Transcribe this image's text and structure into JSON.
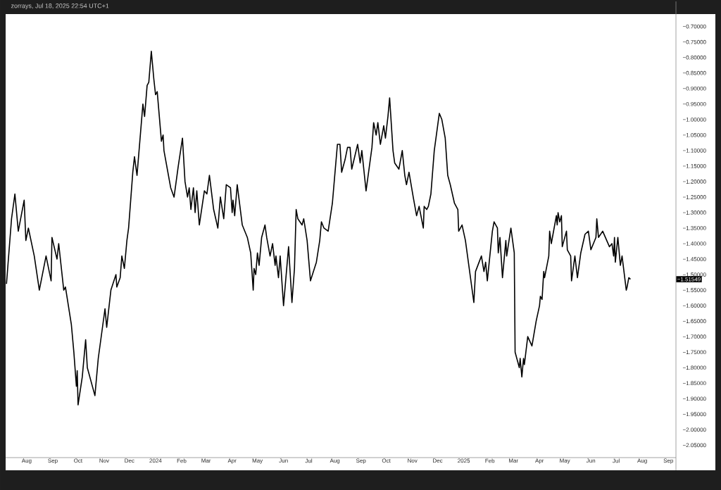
{
  "chart_data": {
    "type": "line",
    "color": "#000000",
    "line_style": "solid",
    "annotations": [
      "zorrays, Jul 18, 2025 22:54 UTC+1",
      "−1.51549"
    ],
    "xlim": [
      "2023-07-07",
      "2025-09-10"
    ],
    "ylim": [
      -2.09,
      -0.66
    ],
    "xticks": [
      {
        "value": "2023-08-01",
        "label": "Aug"
      },
      {
        "value": "2023-09-01",
        "label": "Sep"
      },
      {
        "value": "2023-10-01",
        "label": "Oct"
      },
      {
        "value": "2023-11-01",
        "label": "Nov"
      },
      {
        "value": "2023-12-01",
        "label": "Dec"
      },
      {
        "value": "2024-01-01",
        "label": "2024"
      },
      {
        "value": "2024-02-01",
        "label": "Feb"
      },
      {
        "value": "2024-03-01",
        "label": "Mar"
      },
      {
        "value": "2024-04-01",
        "label": "Apr"
      },
      {
        "value": "2024-05-01",
        "label": "May"
      },
      {
        "value": "2024-06-01",
        "label": "Jun"
      },
      {
        "value": "2024-07-01",
        "label": "Jul"
      },
      {
        "value": "2024-08-01",
        "label": "Aug"
      },
      {
        "value": "2024-09-01",
        "label": "Sep"
      },
      {
        "value": "2024-10-01",
        "label": "Oct"
      },
      {
        "value": "2024-11-01",
        "label": "Nov"
      },
      {
        "value": "2024-12-01",
        "label": "Dec"
      },
      {
        "value": "2025-01-01",
        "label": "2025"
      },
      {
        "value": "2025-02-01",
        "label": "Feb"
      },
      {
        "value": "2025-03-01",
        "label": "Mar"
      },
      {
        "value": "2025-04-01",
        "label": "Apr"
      },
      {
        "value": "2025-05-01",
        "label": "May"
      },
      {
        "value": "2025-06-01",
        "label": "Jun"
      },
      {
        "value": "2025-07-01",
        "label": "Jul"
      },
      {
        "value": "2025-08-01",
        "label": "Aug"
      },
      {
        "value": "2025-09-01",
        "label": "Sep"
      }
    ],
    "yticks": [
      {
        "value": -0.7,
        "label": "−0.70000"
      },
      {
        "value": -0.75,
        "label": "−0.75000"
      },
      {
        "value": -0.8,
        "label": "−0.80000"
      },
      {
        "value": -0.85,
        "label": "−0.85000"
      },
      {
        "value": -0.9,
        "label": "−0.90000"
      },
      {
        "value": -0.95,
        "label": "−0.95000"
      },
      {
        "value": -1.0,
        "label": "−1.00000"
      },
      {
        "value": -1.05,
        "label": "−1.05000"
      },
      {
        "value": -1.1,
        "label": "−1.10000"
      },
      {
        "value": -1.15,
        "label": "−1.15000"
      },
      {
        "value": -1.2,
        "label": "−1.20000"
      },
      {
        "value": -1.25,
        "label": "−1.25000"
      },
      {
        "value": -1.3,
        "label": "−1.30000"
      },
      {
        "value": -1.35,
        "label": "−1.35000"
      },
      {
        "value": -1.4,
        "label": "−1.40000"
      },
      {
        "value": -1.45,
        "label": "−1.45000"
      },
      {
        "value": -1.5,
        "label": "−1.50000"
      },
      {
        "value": -1.55,
        "label": "−1.55000"
      },
      {
        "value": -1.6,
        "label": "−1.60000"
      },
      {
        "value": -1.65,
        "label": "−1.65000"
      },
      {
        "value": -1.7,
        "label": "−1.70000"
      },
      {
        "value": -1.75,
        "label": "−1.75000"
      },
      {
        "value": -1.8,
        "label": "−1.80000"
      },
      {
        "value": -1.85,
        "label": "−1.85000"
      },
      {
        "value": -1.9,
        "label": "−1.90000"
      },
      {
        "value": -1.95,
        "label": "−1.95000"
      },
      {
        "value": -2.0,
        "label": "−2.00000"
      },
      {
        "value": -2.05,
        "label": "−2.05000"
      }
    ],
    "x": [
      "2023-07-08",
      "2023-07-14",
      "2023-07-18",
      "2023-07-22",
      "2023-07-29",
      "2023-07-31",
      "2023-08-03",
      "2023-08-10",
      "2023-08-16",
      "2023-08-24",
      "2023-08-30",
      "2023-08-31",
      "2023-09-06",
      "2023-09-08",
      "2023-09-14",
      "2023-09-16",
      "2023-09-23",
      "2023-09-26",
      "2023-09-29",
      "2023-09-30",
      "2023-10-01",
      "2023-10-06",
      "2023-10-10",
      "2023-10-12",
      "2023-10-21",
      "2023-10-25",
      "2023-11-02",
      "2023-11-04",
      "2023-11-09",
      "2023-11-15",
      "2023-11-16",
      "2023-11-20",
      "2023-11-22",
      "2023-11-25",
      "2023-11-28",
      "2023-11-30",
      "2023-12-05",
      "2023-12-07",
      "2023-12-10",
      "2023-12-17",
      "2023-12-19",
      "2023-12-22",
      "2023-12-24",
      "2023-12-27",
      "2023-12-30",
      "2024-01-01",
      "2024-01-03",
      "2024-01-08",
      "2024-01-10",
      "2024-01-11",
      "2024-01-19",
      "2024-01-23",
      "2024-01-28",
      "2024-02-02",
      "2024-02-05",
      "2024-02-08",
      "2024-02-10",
      "2024-02-12",
      "2024-02-15",
      "2024-02-17",
      "2024-02-19",
      "2024-02-22",
      "2024-02-28",
      "2024-03-02",
      "2024-03-05",
      "2024-03-10",
      "2024-03-15",
      "2024-03-18",
      "2024-03-22",
      "2024-03-25",
      "2024-03-30",
      "2024-04-01",
      "2024-04-02",
      "2024-04-04",
      "2024-04-07",
      "2024-04-13",
      "2024-04-19",
      "2024-04-23",
      "2024-04-26",
      "2024-04-27",
      "2024-04-29",
      "2024-05-01",
      "2024-05-03",
      "2024-05-06",
      "2024-05-10",
      "2024-05-12",
      "2024-05-16",
      "2024-05-19",
      "2024-05-22",
      "2024-05-23",
      "2024-05-26",
      "2024-05-28",
      "2024-06-01",
      "2024-06-07",
      "2024-06-11",
      "2024-06-14",
      "2024-06-16",
      "2024-06-18",
      "2024-06-23",
      "2024-06-25",
      "2024-06-29",
      "2024-07-03",
      "2024-07-10",
      "2024-07-14",
      "2024-07-16",
      "2024-07-19",
      "2024-07-24",
      "2024-07-29",
      "2024-08-04",
      "2024-08-07",
      "2024-08-09",
      "2024-08-13",
      "2024-08-16",
      "2024-08-19",
      "2024-08-21",
      "2024-08-28",
      "2024-08-31",
      "2024-09-02",
      "2024-09-07",
      "2024-09-14",
      "2024-09-16",
      "2024-09-19",
      "2024-09-21",
      "2024-09-24",
      "2024-09-28",
      "2024-09-30",
      "2024-10-03",
      "2024-10-05",
      "2024-10-09",
      "2024-10-11",
      "2024-10-16",
      "2024-10-20",
      "2024-10-23",
      "2024-10-25",
      "2024-10-28",
      "2024-11-02",
      "2024-11-06",
      "2024-11-09",
      "2024-11-14",
      "2024-11-15",
      "2024-11-18",
      "2024-11-20",
      "2024-11-23",
      "2024-11-27",
      "2024-12-01",
      "2024-12-03",
      "2024-12-06",
      "2024-12-10",
      "2024-12-13",
      "2024-12-16",
      "2024-12-21",
      "2024-12-25",
      "2024-12-26",
      "2024-12-30",
      "2025-01-03",
      "2025-01-09",
      "2025-01-13",
      "2025-01-15",
      "2025-01-22",
      "2025-01-25",
      "2025-01-27",
      "2025-01-29",
      "2025-02-04",
      "2025-02-06",
      "2025-02-10",
      "2025-02-11",
      "2025-02-13",
      "2025-02-16",
      "2025-02-20",
      "2025-02-21",
      "2025-02-26",
      "2025-03-02",
      "2025-03-03",
      "2025-03-08",
      "2025-03-09",
      "2025-03-11",
      "2025-03-13",
      "2025-03-14",
      "2025-03-18",
      "2025-03-23",
      "2025-03-28",
      "2025-04-01",
      "2025-04-02",
      "2025-04-04",
      "2025-04-06",
      "2025-04-07",
      "2025-04-12",
      "2025-04-13",
      "2025-04-15",
      "2025-04-21",
      "2025-04-22",
      "2025-04-23",
      "2025-04-25",
      "2025-04-27",
      "2025-04-28",
      "2025-05-03",
      "2025-05-04",
      "2025-05-08",
      "2025-05-09",
      "2025-05-13",
      "2025-05-16",
      "2025-05-20",
      "2025-05-25",
      "2025-05-29",
      "2025-06-01",
      "2025-06-07",
      "2025-06-08",
      "2025-06-10",
      "2025-06-15",
      "2025-06-23",
      "2025-06-26",
      "2025-06-28",
      "2025-06-29",
      "2025-06-30",
      "2025-07-03",
      "2025-07-06",
      "2025-07-08",
      "2025-07-13",
      "2025-07-14",
      "2025-07-16",
      "2025-07-18"
    ],
    "values": [
      -1.53,
      -1.32,
      -1.24,
      -1.36,
      -1.26,
      -1.39,
      -1.35,
      -1.44,
      -1.55,
      -1.44,
      -1.52,
      -1.38,
      -1.45,
      -1.4,
      -1.55,
      -1.54,
      -1.66,
      -1.75,
      -1.86,
      -1.81,
      -1.92,
      -1.83,
      -1.71,
      -1.8,
      -1.89,
      -1.77,
      -1.61,
      -1.67,
      -1.55,
      -1.5,
      -1.54,
      -1.51,
      -1.44,
      -1.48,
      -1.39,
      -1.35,
      -1.17,
      -1.12,
      -1.18,
      -0.95,
      -0.99,
      -0.89,
      -0.88,
      -0.78,
      -0.87,
      -0.92,
      -0.91,
      -1.07,
      -1.05,
      -1.1,
      -1.22,
      -1.25,
      -1.15,
      -1.06,
      -1.2,
      -1.25,
      -1.22,
      -1.29,
      -1.22,
      -1.3,
      -1.23,
      -1.34,
      -1.23,
      -1.24,
      -1.18,
      -1.29,
      -1.35,
      -1.25,
      -1.32,
      -1.21,
      -1.22,
      -1.3,
      -1.26,
      -1.31,
      -1.21,
      -1.34,
      -1.38,
      -1.43,
      -1.55,
      -1.48,
      -1.5,
      -1.43,
      -1.47,
      -1.38,
      -1.34,
      -1.38,
      -1.44,
      -1.4,
      -1.47,
      -1.44,
      -1.51,
      -1.44,
      -1.6,
      -1.41,
      -1.59,
      -1.48,
      -1.29,
      -1.32,
      -1.34,
      -1.32,
      -1.39,
      -1.52,
      -1.46,
      -1.39,
      -1.33,
      -1.35,
      -1.36,
      -1.27,
      -1.08,
      -1.08,
      -1.17,
      -1.13,
      -1.09,
      -1.09,
      -1.16,
      -1.08,
      -1.14,
      -1.1,
      -1.23,
      -1.09,
      -1.01,
      -1.05,
      -1.01,
      -1.08,
      -1.02,
      -1.06,
      -0.99,
      -0.93,
      -1.1,
      -1.14,
      -1.16,
      -1.1,
      -1.18,
      -1.21,
      -1.17,
      -1.25,
      -1.31,
      -1.28,
      -1.35,
      -1.28,
      -1.29,
      -1.28,
      -1.24,
      -1.1,
      -1.02,
      -0.98,
      -1.0,
      -1.06,
      -1.18,
      -1.21,
      -1.27,
      -1.29,
      -1.36,
      -1.34,
      -1.39,
      -1.51,
      -1.59,
      -1.49,
      -1.44,
      -1.49,
      -1.46,
      -1.52,
      -1.36,
      -1.33,
      -1.35,
      -1.43,
      -1.38,
      -1.51,
      -1.39,
      -1.44,
      -1.35,
      -1.43,
      -1.75,
      -1.8,
      -1.77,
      -1.83,
      -1.77,
      -1.79,
      -1.7,
      -1.73,
      -1.65,
      -1.6,
      -1.57,
      -1.58,
      -1.49,
      -1.51,
      -1.44,
      -1.36,
      -1.4,
      -1.31,
      -1.34,
      -1.3,
      -1.33,
      -1.31,
      -1.41,
      -1.36,
      -1.42,
      -1.44,
      -1.52,
      -1.44,
      -1.51,
      -1.43,
      -1.37,
      -1.36,
      -1.42,
      -1.38,
      -1.32,
      -1.38,
      -1.36,
      -1.41,
      -1.4,
      -1.44,
      -1.38,
      -1.46,
      -1.38,
      -1.47,
      -1.44,
      -1.55,
      -1.54,
      -1.51,
      -1.515
    ]
  }
}
